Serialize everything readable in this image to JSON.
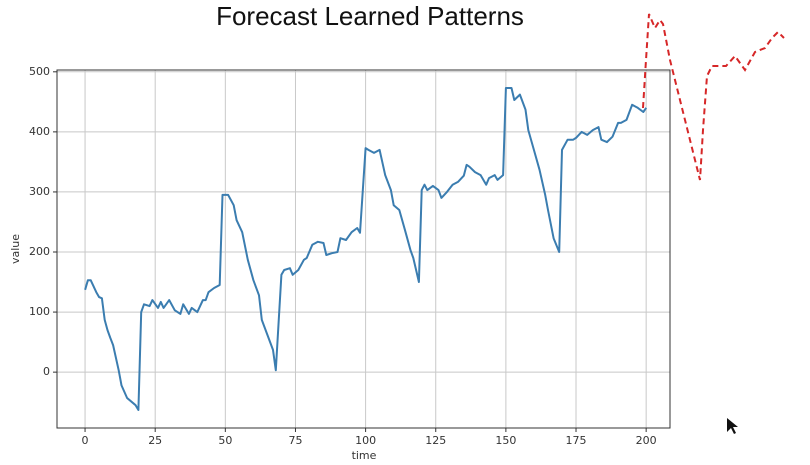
{
  "chart_data": {
    "type": "line",
    "title": "Forecast Learned Patterns",
    "x_label": "time",
    "y_label": "value",
    "x": [
      0,
      1,
      2,
      4,
      5,
      6,
      7,
      8,
      9,
      10,
      12,
      13,
      15,
      18,
      19,
      20,
      21,
      23,
      24,
      26,
      27,
      28,
      30,
      32,
      34,
      35,
      37,
      38,
      40,
      42,
      43,
      44,
      46,
      48,
      49,
      51,
      53,
      54,
      56,
      58,
      60,
      62,
      63,
      65,
      67,
      68,
      70,
      71,
      73,
      74,
      76,
      78,
      79,
      81,
      83,
      85,
      86,
      88,
      90,
      91,
      93,
      95,
      97,
      98,
      100,
      101,
      103,
      105,
      107,
      109,
      110,
      112,
      114,
      116,
      117,
      119,
      120,
      121,
      122,
      124,
      126,
      127,
      129,
      131,
      133,
      135,
      136,
      137,
      139,
      141,
      143,
      144,
      146,
      147,
      149,
      150,
      152,
      153,
      155,
      157,
      158,
      160,
      162,
      164,
      165,
      167,
      169,
      170,
      172,
      174,
      175,
      177,
      179,
      181,
      183,
      184,
      186,
      188,
      190,
      191,
      193,
      195,
      197,
      199,
      200
    ],
    "values": [
      137,
      153,
      153,
      133,
      125,
      123,
      87,
      70,
      57,
      45,
      3,
      -22,
      -43,
      -55,
      -63,
      100,
      113,
      110,
      120,
      107,
      117,
      107,
      120,
      103,
      97,
      113,
      97,
      107,
      100,
      120,
      120,
      133,
      140,
      145,
      295,
      295,
      278,
      253,
      233,
      187,
      153,
      128,
      87,
      62,
      37,
      3,
      162,
      170,
      173,
      162,
      170,
      187,
      190,
      212,
      217,
      215,
      195,
      198,
      200,
      223,
      220,
      233,
      240,
      232,
      373,
      370,
      365,
      370,
      328,
      303,
      278,
      270,
      237,
      203,
      190,
      150,
      303,
      312,
      303,
      310,
      303,
      290,
      300,
      312,
      317,
      327,
      345,
      342,
      333,
      328,
      312,
      323,
      328,
      320,
      328,
      473,
      473,
      453,
      462,
      437,
      403,
      370,
      337,
      295,
      270,
      223,
      200,
      370,
      387,
      387,
      390,
      400,
      395,
      403,
      408,
      387,
      383,
      392,
      415,
      415,
      420,
      445,
      440,
      433,
      440
    ],
    "color": "#3b7db0",
    "xlim": [
      -10,
      208.5
    ],
    "ylim": [
      -93,
      503
    ],
    "xticks": [
      0,
      25,
      50,
      75,
      100,
      125,
      150,
      175,
      200
    ],
    "yticks": [
      0,
      100,
      200,
      300,
      400,
      500
    ],
    "grid": true
  }
}
